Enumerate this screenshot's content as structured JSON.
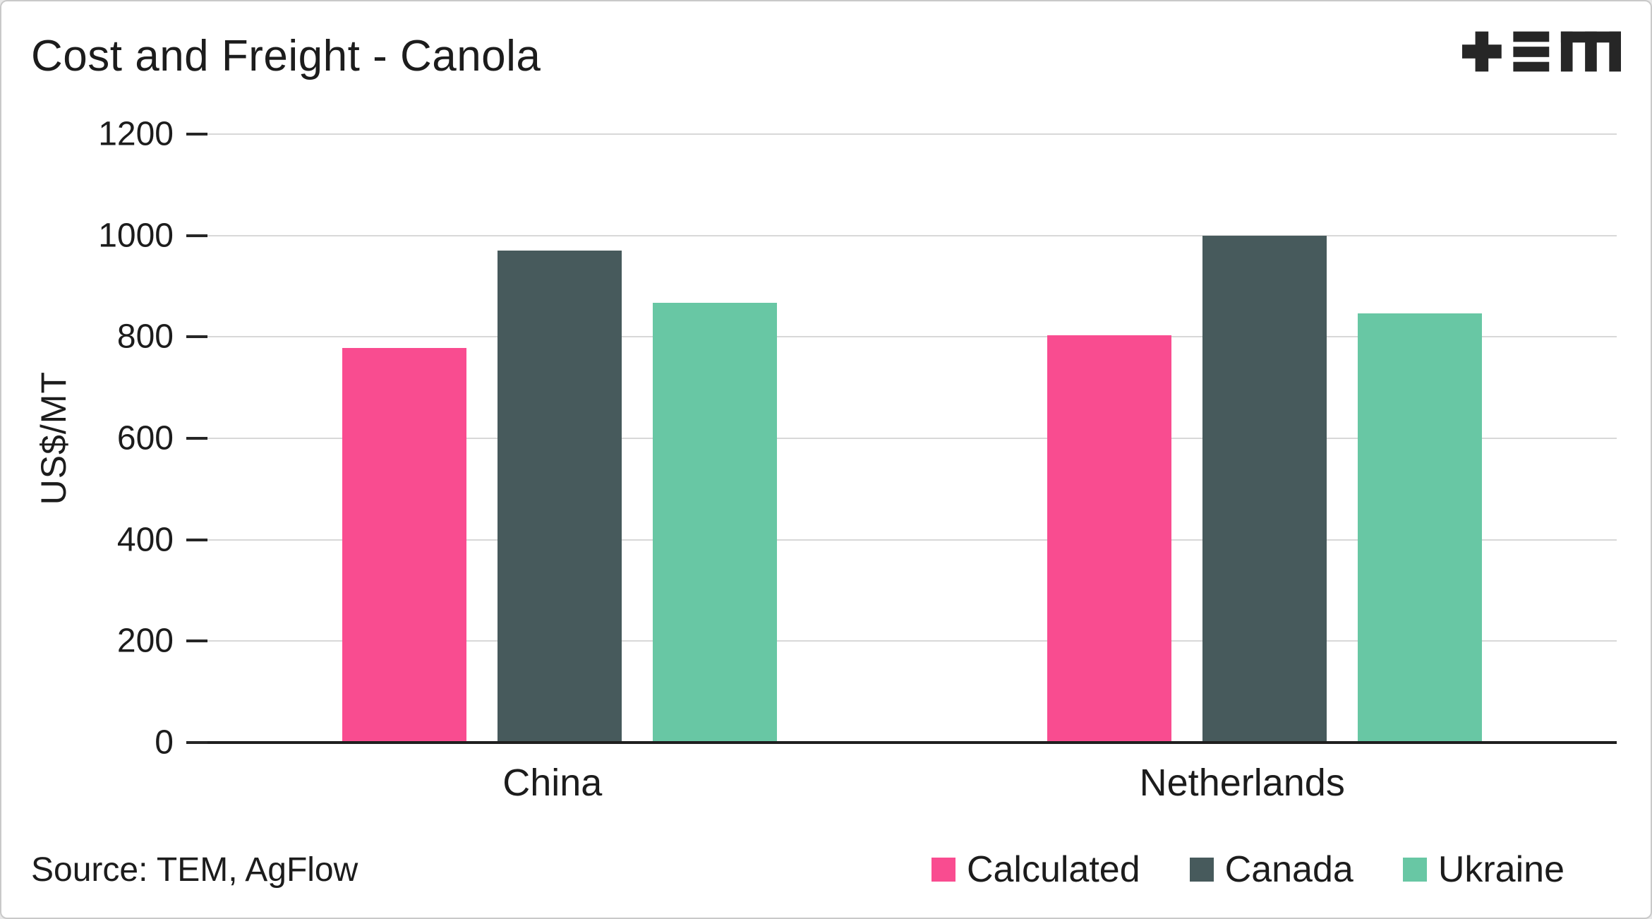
{
  "logo_alt": "TEM",
  "icons": {
    "logo": "tem-logo"
  },
  "footer": {
    "source": "Source: TEM, AgFlow"
  },
  "chart_data": {
    "type": "bar",
    "title": "Cost and Freight - Canola",
    "xlabel": "",
    "ylabel": "US$/MT",
    "ylim": [
      0,
      1200
    ],
    "yticks": [
      0,
      200,
      400,
      600,
      800,
      1000,
      1200
    ],
    "grid": true,
    "legend_position": "bottom-right",
    "categories": [
      "China",
      "Netherlands"
    ],
    "series": [
      {
        "name": "Calculated",
        "color": "#F94C90",
        "values": [
          778,
          803
        ]
      },
      {
        "name": "Canada",
        "color": "#475A5C",
        "values": [
          970,
          1000
        ]
      },
      {
        "name": "Ukraine",
        "color": "#68C7A4",
        "values": [
          868,
          847
        ]
      }
    ]
  }
}
